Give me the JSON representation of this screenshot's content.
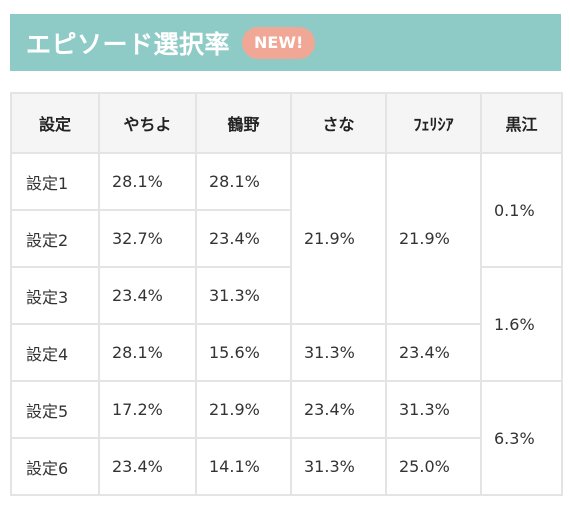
{
  "header": {
    "title": "エピソード選択率",
    "badge": "NEW!"
  },
  "table": {
    "columns": [
      "設定",
      "やちよ",
      "鶴野",
      "さな",
      "ﾌｪﾘｼｱ",
      "黒江"
    ],
    "rows": [
      {
        "label": "設定1",
        "yachiyo": "28.1%",
        "tsuruno": "28.1%"
      },
      {
        "label": "設定2",
        "yachiyo": "32.7%",
        "tsuruno": "23.4%"
      },
      {
        "label": "設定3",
        "yachiyo": "23.4%",
        "tsuruno": "31.3%"
      },
      {
        "label": "設定4",
        "yachiyo": "28.1%",
        "tsuruno": "15.6%",
        "sana": "31.3%",
        "felicia": "23.4%"
      },
      {
        "label": "設定5",
        "yachiyo": "17.2%",
        "tsuruno": "21.9%",
        "sana": "23.4%",
        "felicia": "31.3%"
      },
      {
        "label": "設定6",
        "yachiyo": "23.4%",
        "tsuruno": "14.1%",
        "sana": "31.3%",
        "felicia": "25.0%"
      }
    ],
    "merged": {
      "sana_1_3": "21.9%",
      "felicia_1_3": "21.9%",
      "kuroe_1_2": "0.1%",
      "kuroe_3_4": "1.6%",
      "kuroe_5_6": "6.3%"
    }
  },
  "colors": {
    "header_bg": "#8ecbc7",
    "badge_bg": "#f0a796",
    "table_border": "#e4e4e4",
    "th_bg": "#f5f5f5"
  }
}
